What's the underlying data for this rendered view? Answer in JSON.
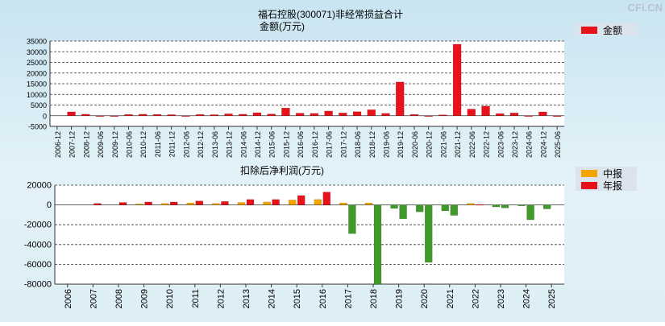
{
  "watermark": "CFi.CN",
  "chart_data": [
    {
      "type": "bar",
      "title": "福石控股(300071)非经常损益合计",
      "ylabel": "金额(万元)",
      "ylim": [
        -5000,
        35000
      ],
      "yticks": [
        -5000,
        0,
        5000,
        10000,
        15000,
        20000,
        25000,
        30000,
        35000
      ],
      "grid": true,
      "legend_position": "top-right",
      "categories": [
        "2006-12",
        "2007-12",
        "2008-12",
        "2009-06",
        "2009-12",
        "2010-06",
        "2010-12",
        "2011-06",
        "2011-12",
        "2012-06",
        "2012-12",
        "2013-06",
        "2013-12",
        "2014-06",
        "2014-12",
        "2015-06",
        "2015-12",
        "2016-06",
        "2016-12",
        "2017-06",
        "2017-12",
        "2018-06",
        "2018-12",
        "2019-06",
        "2019-12",
        "2020-06",
        "2020-12",
        "2021-06",
        "2021-12",
        "2022-06",
        "2022-12",
        "2023-06",
        "2023-12",
        "2024-06",
        "2024-12",
        "2025-06"
      ],
      "series": [
        {
          "name": "金额",
          "color": "#e8121b",
          "values": [
            0,
            1800,
            700,
            -300,
            -200,
            600,
            700,
            600,
            500,
            -300,
            600,
            500,
            900,
            700,
            1400,
            800,
            3600,
            1200,
            1100,
            2200,
            1300,
            1900,
            2800,
            1100,
            15800,
            600,
            -300,
            400,
            33500,
            3100,
            4500,
            1000,
            1300,
            -200,
            1800,
            -400
          ]
        }
      ]
    },
    {
      "type": "bar",
      "title": "扣除后净利润(万元)",
      "ylim": [
        -80000,
        20000
      ],
      "yticks": [
        -80000,
        -60000,
        -40000,
        -20000,
        0,
        20000
      ],
      "grid": true,
      "legend_position": "top-right",
      "categories": [
        "2006",
        "2007",
        "2008",
        "2009",
        "2010",
        "2011",
        "2012",
        "2013",
        "2014",
        "2015",
        "2016",
        "2017",
        "2018",
        "2019",
        "2020",
        "2021",
        "2022",
        "2023",
        "2024",
        "2025"
      ],
      "series": [
        {
          "name": "中报",
          "color": "#f5a500",
          "values": [
            null,
            null,
            null,
            1000,
            1500,
            2000,
            1500,
            2500,
            3000,
            5000,
            5500,
            2000,
            2000,
            -3500,
            -7000,
            -6000,
            1500,
            -2000,
            -1000,
            -4000
          ]
        },
        {
          "name": "年报",
          "color": "#e8121b",
          "values": [
            null,
            1500,
            2500,
            3000,
            3000,
            4000,
            3500,
            5500,
            5500,
            9500,
            13000,
            -29000,
            -80000,
            -14000,
            -58000,
            -10500,
            500,
            -3000,
            -15000,
            null
          ]
        }
      ],
      "negative_color": "#3f9a2a"
    }
  ]
}
